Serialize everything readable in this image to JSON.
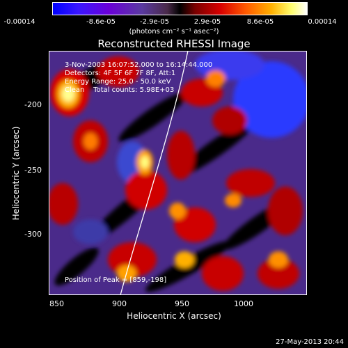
{
  "colorbar": {
    "tick_labels": [
      "-0.00014",
      "-8.6e-05",
      "-2.9e-05",
      "2.9e-05",
      "8.6e-05",
      "0.00014"
    ],
    "units": "(photons cm⁻² s⁻¹ asec⁻²)"
  },
  "plot": {
    "title": "Reconstructed RHESSI Image",
    "info_lines": [
      "3-Nov-2003 16:07:52.000 to 16:14:44.000",
      "Detectors: 4F 5F 6F 7F 8F, Att:1",
      "Energy Range: 25.0 - 50.0 keV",
      "Clean    Total counts: 5.98E+03"
    ],
    "peak_text": "Position of Peak = [859,-198]",
    "x_label": "Heliocentric X (arcsec)",
    "y_label": "Heliocentric Y (arcsec)",
    "x_ticks": [
      "850",
      "900",
      "950",
      "1000"
    ],
    "y_ticks": [
      "-200",
      "-250",
      "-300"
    ]
  },
  "footer": {
    "timestamp": "27-May-2013 20:44"
  }
}
